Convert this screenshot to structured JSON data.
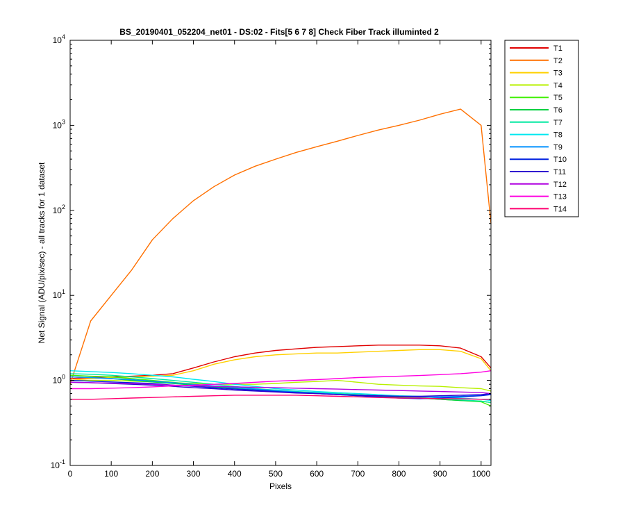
{
  "chart_data": {
    "type": "line",
    "title": "BS_20190401_052204_net01 - DS:02 - Fits[5  6  7  8]   Check Fiber     Track illuminted 2",
    "xlabel": "Pixels",
    "ylabel": "Net Signal (ADU/pix/sec) - all tracks for 1 dataset",
    "xlim": [
      0,
      1024
    ],
    "ylim": [
      0.1,
      10000
    ],
    "yscale": "log",
    "x_ticks": [
      "0",
      "100",
      "200",
      "300",
      "400",
      "500",
      "600",
      "700",
      "800",
      "900",
      "1000"
    ],
    "y_ticks": [
      {
        "base": "10",
        "exp": "-1"
      },
      {
        "base": "10",
        "exp": "0"
      },
      {
        "base": "10",
        "exp": "1"
      },
      {
        "base": "10",
        "exp": "2"
      },
      {
        "base": "10",
        "exp": "3"
      },
      {
        "base": "10",
        "exp": "4"
      }
    ],
    "grid": false,
    "legend_position": "outside-right",
    "x": [
      0,
      50,
      100,
      150,
      200,
      250,
      300,
      350,
      400,
      450,
      500,
      550,
      600,
      650,
      700,
      750,
      800,
      850,
      900,
      950,
      1000,
      1024
    ],
    "series": [
      {
        "name": "T1",
        "color": "#e00000",
        "values": [
          1.05,
          1.08,
          1.1,
          1.12,
          1.15,
          1.2,
          1.4,
          1.65,
          1.9,
          2.1,
          2.25,
          2.35,
          2.45,
          2.5,
          2.55,
          2.6,
          2.6,
          2.6,
          2.55,
          2.4,
          1.9,
          1.4
        ]
      },
      {
        "name": "T2",
        "color": "#ff7000",
        "values": [
          0.9,
          5.0,
          10,
          20,
          45,
          80,
          130,
          190,
          260,
          330,
          400,
          480,
          560,
          650,
          760,
          880,
          1000,
          1150,
          1350,
          1550,
          1000,
          70
        ]
      },
      {
        "name": "T3",
        "color": "#ffd000",
        "values": [
          1.0,
          1.05,
          1.08,
          1.1,
          1.12,
          1.15,
          1.3,
          1.55,
          1.75,
          1.9,
          2.0,
          2.05,
          2.1,
          2.1,
          2.15,
          2.2,
          2.25,
          2.3,
          2.3,
          2.2,
          1.8,
          1.3
        ]
      },
      {
        "name": "T4",
        "color": "#b8f000",
        "values": [
          1.0,
          1.0,
          1.0,
          0.98,
          0.96,
          0.94,
          0.92,
          0.9,
          0.9,
          0.9,
          0.92,
          0.95,
          0.97,
          1.0,
          0.95,
          0.9,
          0.88,
          0.86,
          0.85,
          0.82,
          0.8,
          0.75
        ]
      },
      {
        "name": "T5",
        "color": "#40f000",
        "values": [
          1.15,
          1.12,
          1.1,
          1.05,
          1.0,
          0.95,
          0.9,
          0.85,
          0.8,
          0.77,
          0.75,
          0.73,
          0.71,
          0.7,
          0.68,
          0.66,
          0.64,
          0.62,
          0.6,
          0.58,
          0.56,
          0.5
        ]
      },
      {
        "name": "T6",
        "color": "#00d040",
        "values": [
          1.1,
          1.08,
          1.05,
          1.0,
          0.96,
          0.92,
          0.88,
          0.84,
          0.8,
          0.77,
          0.74,
          0.72,
          0.7,
          0.68,
          0.66,
          0.65,
          0.63,
          0.62,
          0.6,
          0.58,
          0.57,
          0.55
        ]
      },
      {
        "name": "T7",
        "color": "#00e8a0",
        "values": [
          1.2,
          1.18,
          1.15,
          1.1,
          1.05,
          1.0,
          0.95,
          0.9,
          0.85,
          0.8,
          0.77,
          0.74,
          0.72,
          0.7,
          0.68,
          0.66,
          0.65,
          0.63,
          0.61,
          0.59,
          0.57,
          0.55
        ]
      },
      {
        "name": "T8",
        "color": "#00e8f0",
        "values": [
          1.3,
          1.27,
          1.24,
          1.2,
          1.15,
          1.1,
          1.03,
          0.97,
          0.9,
          0.85,
          0.8,
          0.77,
          0.74,
          0.72,
          0.7,
          0.68,
          0.66,
          0.65,
          0.63,
          0.62,
          0.6,
          0.58
        ]
      },
      {
        "name": "T9",
        "color": "#0090ff",
        "values": [
          1.1,
          1.08,
          1.05,
          1.02,
          0.98,
          0.94,
          0.9,
          0.86,
          0.82,
          0.79,
          0.76,
          0.73,
          0.71,
          0.69,
          0.67,
          0.66,
          0.65,
          0.64,
          0.64,
          0.65,
          0.67,
          0.68
        ]
      },
      {
        "name": "T10",
        "color": "#0020e0",
        "values": [
          1.0,
          0.98,
          0.96,
          0.94,
          0.92,
          0.88,
          0.85,
          0.82,
          0.79,
          0.77,
          0.74,
          0.72,
          0.7,
          0.68,
          0.66,
          0.64,
          0.62,
          0.61,
          0.62,
          0.64,
          0.66,
          0.68
        ]
      },
      {
        "name": "T11",
        "color": "#3000d0",
        "values": [
          0.95,
          0.94,
          0.92,
          0.9,
          0.88,
          0.85,
          0.82,
          0.8,
          0.77,
          0.75,
          0.73,
          0.71,
          0.7,
          0.68,
          0.67,
          0.66,
          0.65,
          0.65,
          0.66,
          0.67,
          0.68,
          0.7
        ]
      },
      {
        "name": "T12",
        "color": "#b000e0",
        "values": [
          0.95,
          0.94,
          0.93,
          0.92,
          0.9,
          0.88,
          0.86,
          0.85,
          0.84,
          0.83,
          0.82,
          0.81,
          0.8,
          0.79,
          0.78,
          0.77,
          0.76,
          0.75,
          0.74,
          0.73,
          0.72,
          0.7
        ]
      },
      {
        "name": "T13",
        "color": "#ff00e0",
        "values": [
          0.8,
          0.8,
          0.81,
          0.82,
          0.84,
          0.86,
          0.88,
          0.9,
          0.92,
          0.95,
          0.98,
          1.0,
          1.02,
          1.05,
          1.08,
          1.1,
          1.12,
          1.14,
          1.17,
          1.2,
          1.25,
          1.3
        ]
      },
      {
        "name": "T14",
        "color": "#ff0070",
        "values": [
          0.6,
          0.6,
          0.61,
          0.62,
          0.63,
          0.64,
          0.65,
          0.66,
          0.67,
          0.67,
          0.67,
          0.67,
          0.66,
          0.65,
          0.64,
          0.63,
          0.62,
          0.62,
          0.61,
          0.61,
          0.6,
          0.6
        ]
      }
    ]
  }
}
